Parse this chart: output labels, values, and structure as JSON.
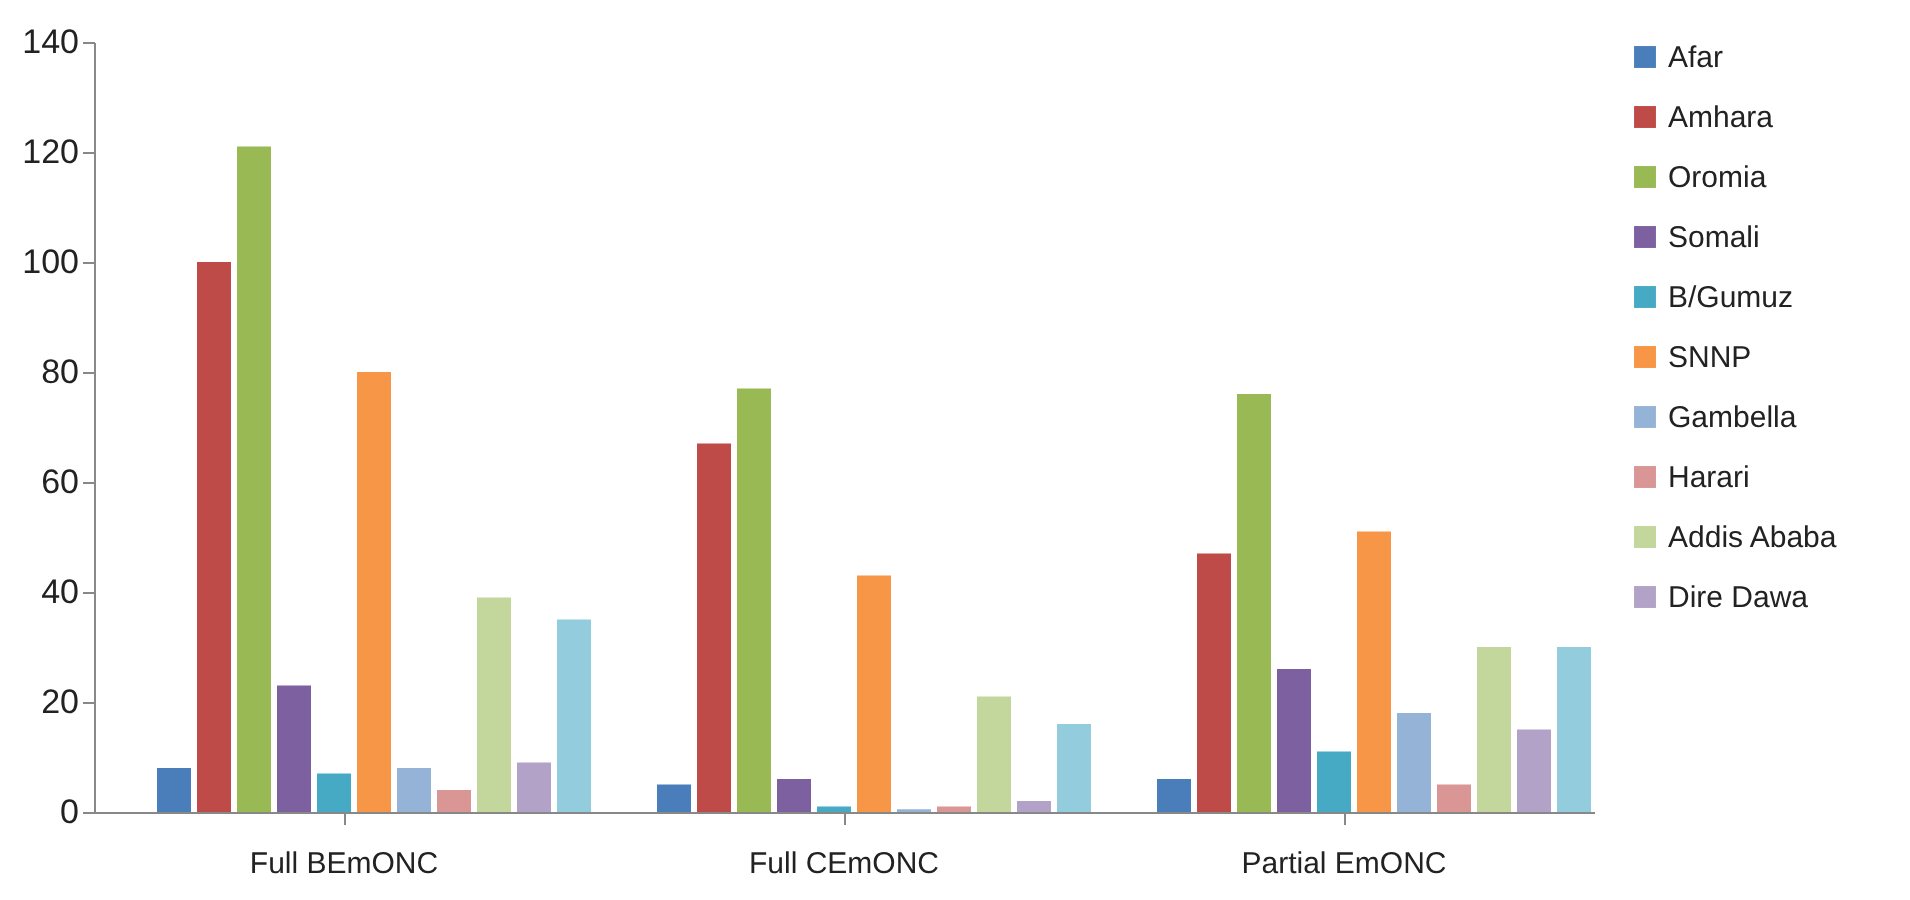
{
  "chart_data": {
    "type": "bar",
    "categories": [
      "Full BEmONC",
      "Full CEmONC",
      "Partial EmONC"
    ],
    "series": [
      {
        "name": "Afar",
        "color": "#4a7ebb",
        "values": [
          8,
          5,
          6
        ]
      },
      {
        "name": "Amhara",
        "color": "#be4b48",
        "values": [
          100,
          67,
          47
        ]
      },
      {
        "name": "Oromia",
        "color": "#98b954",
        "values": [
          121,
          77,
          76
        ]
      },
      {
        "name": "Somali",
        "color": "#7d60a0",
        "values": [
          23,
          6,
          26
        ]
      },
      {
        "name": "B/Gumuz",
        "color": "#46aac5",
        "values": [
          7,
          1,
          11
        ]
      },
      {
        "name": "SNNP",
        "color": "#f79646",
        "values": [
          80,
          43,
          51
        ]
      },
      {
        "name": "Gambella",
        "color": "#95b3d7",
        "values": [
          8,
          0.5,
          18
        ]
      },
      {
        "name": "Harari",
        "color": "#d99694",
        "values": [
          4,
          1,
          5
        ]
      },
      {
        "name": "Addis Ababa",
        "color": "#c3d69b",
        "values": [
          39,
          21,
          30
        ]
      },
      {
        "name": "Dire Dawa",
        "color": "#b3a2c7",
        "values": [
          9,
          2,
          15
        ]
      },
      {
        "color": "#93cddd",
        "values": [
          35,
          16,
          30
        ]
      }
    ],
    "ylim": [
      0,
      140
    ],
    "yticks": [
      0,
      20,
      40,
      60,
      80,
      100,
      120,
      140
    ],
    "legend": "right"
  }
}
